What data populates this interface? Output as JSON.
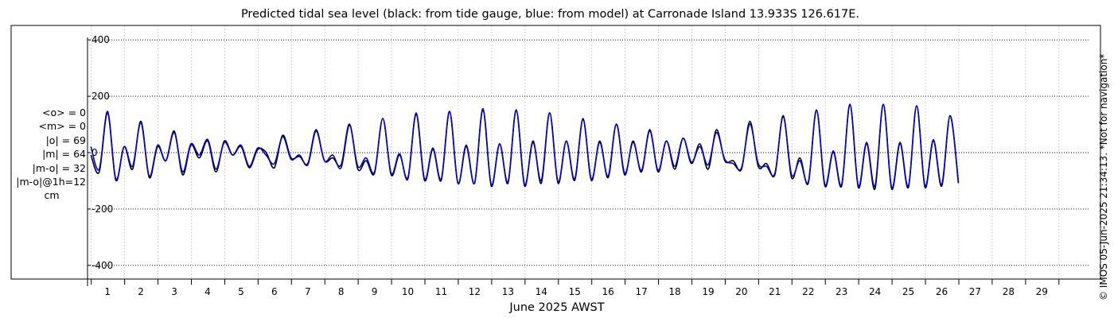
{
  "chart_data": {
    "type": "line",
    "title": "Predicted tidal sea level (black: from tide gauge, blue: from model) at Carronade Island 13.933S 126.617E.",
    "xlabel": "June 2025 AWST",
    "ylabel": "",
    "xlim": [
      0.4,
      30.4
    ],
    "ylim": [
      -450,
      450
    ],
    "x_ticks": [
      1,
      2,
      3,
      4,
      5,
      6,
      7,
      8,
      9,
      10,
      11,
      12,
      13,
      14,
      15,
      16,
      17,
      18,
      19,
      20,
      21,
      22,
      23,
      24,
      25,
      26,
      27,
      28,
      29
    ],
    "x_tick_labels": [
      "1",
      "2",
      "3",
      "4",
      "5",
      "6",
      "7",
      "8",
      "9",
      "10",
      "11",
      "12",
      "13",
      "14",
      "15",
      "16",
      "17",
      "18",
      "19",
      "20",
      "21",
      "22",
      "23",
      "24",
      "25",
      "26",
      "27",
      "28",
      "29"
    ],
    "y_ticks": [
      -400,
      -200,
      0,
      200,
      400
    ],
    "y_tick_labels": [
      "-400",
      "-200",
      "0",
      "200",
      "400"
    ],
    "grid": true,
    "series": [
      {
        "color": "#000000",
        "values_note": "tide gauge",
        "x_start": 0.5,
        "x_step": 0.25,
        "values": [
          -10,
          -70,
          140,
          -100,
          20,
          -60,
          110,
          -90,
          20,
          -30,
          75,
          -80,
          25,
          -20,
          40,
          -70,
          40,
          -10,
          20,
          -55,
          10,
          0,
          -55,
          60,
          -20,
          -15,
          -40,
          80,
          -30,
          -20,
          -45,
          100,
          -60,
          -30,
          -75,
          120,
          -80,
          -10,
          -90,
          135,
          -100,
          10,
          -100,
          145,
          -110,
          20,
          -110,
          150,
          -120,
          30,
          -110,
          150,
          -120,
          40,
          -110,
          140,
          -110,
          40,
          -100,
          120,
          -100,
          40,
          -90,
          100,
          -80,
          40,
          -70,
          80,
          -70,
          40,
          -60,
          50,
          -40,
          30,
          -60,
          80,
          -30,
          -30,
          -60,
          110,
          -50,
          -40,
          -80,
          130,
          -90,
          -20,
          -110,
          150,
          -120,
          0,
          -120,
          170,
          -125,
          30,
          -130,
          170,
          -130,
          30,
          -125,
          165,
          -125,
          40,
          -120,
          130,
          -110
        ]
      },
      {
        "color": "#0000cc",
        "values_note": "model",
        "x_start": 0.5,
        "x_step": 0.25,
        "values": [
          20,
          -60,
          145,
          -95,
          20,
          -50,
          105,
          -85,
          25,
          -30,
          70,
          -70,
          30,
          -10,
          45,
          -60,
          35,
          -10,
          25,
          -50,
          15,
          -10,
          -40,
          55,
          -25,
          -10,
          -45,
          75,
          -30,
          -10,
          -55,
          95,
          -50,
          -20,
          -70,
          120,
          -75,
          -5,
          -95,
          140,
          -95,
          15,
          -95,
          145,
          -110,
          25,
          -110,
          155,
          -115,
          30,
          -105,
          150,
          -115,
          35,
          -100,
          140,
          -105,
          40,
          -95,
          115,
          -95,
          35,
          -85,
          100,
          -75,
          35,
          -65,
          75,
          -65,
          40,
          -50,
          50,
          -35,
          20,
          -45,
          70,
          -25,
          -40,
          -55,
          100,
          -40,
          -50,
          -75,
          125,
          -80,
          -30,
          -105,
          150,
          -115,
          5,
          -115,
          170,
          -120,
          35,
          -120,
          170,
          -125,
          35,
          -120,
          165,
          -120,
          45,
          -115,
          130,
          -105
        ]
      }
    ],
    "annotations": {
      "stats_lines": [
        "<o> = 0",
        "<m> = 0",
        "|o| = 69",
        "|m| = 64",
        "|m-o| = 32",
        "|m-o|@1h=12"
      ],
      "stats_units": "cm",
      "side_note": "© IMOS 05-Jun-2025 21:34:13.  *Not for navigation*"
    }
  }
}
